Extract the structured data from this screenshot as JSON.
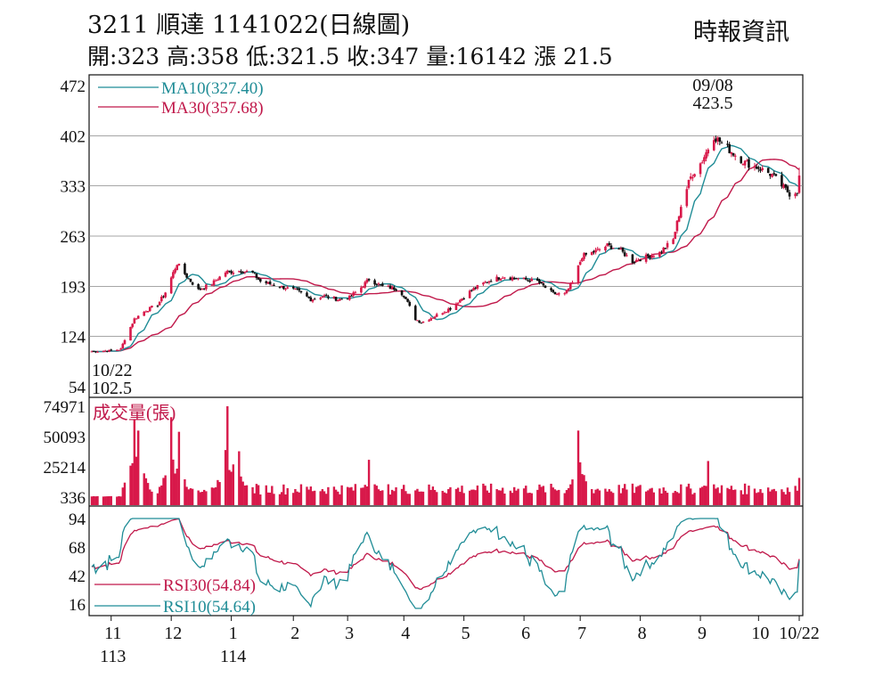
{
  "header": {
    "title": "3211  順達 1141022(日線圖)",
    "ohlc_line": "開:323 高:358 低:321.5 收:347 量:16142 漲 21.5",
    "source": "時報資訊"
  },
  "colors": {
    "up": "#d8194a",
    "down": "#111111",
    "ma10": "#1f8c96",
    "ma30": "#c0184a",
    "volume": "#d8194a",
    "rsi30": "#c0184a",
    "rsi10": "#1f8c96",
    "grid": "#888888"
  },
  "chart_data": [
    {
      "type": "candlestick",
      "panel": "price",
      "y_ticks": [
        "472",
        "402",
        "333",
        "263",
        "193",
        "124",
        "54"
      ],
      "ylim": [
        54,
        472
      ],
      "legend": [
        {
          "key": "ma10",
          "label": "MA10(327.40)"
        },
        {
          "key": "ma30",
          "label": "MA30(357.68)"
        }
      ],
      "annotations": {
        "high": {
          "date": "09/08",
          "value": "423.5"
        },
        "low": {
          "date": "10/22",
          "value": "102.5"
        }
      },
      "ma10_last": 327.4,
      "ma30_last": 357.68,
      "last_bar": {
        "open": 323,
        "high": 358,
        "low": 321.5,
        "close": 347,
        "volume": 16142,
        "change": 21.5
      },
      "close_anchors": [
        [
          "2024-10-22",
          103
        ],
        [
          "2024-11-01",
          104
        ],
        [
          "2024-11-06",
          106
        ],
        [
          "2024-11-08",
          120
        ],
        [
          "2024-11-13",
          148
        ],
        [
          "2024-11-19",
          160
        ],
        [
          "2024-11-25",
          168
        ],
        [
          "2024-11-29",
          185
        ],
        [
          "2024-12-03",
          212
        ],
        [
          "2024-12-05",
          225
        ],
        [
          "2024-12-10",
          207
        ],
        [
          "2024-12-16",
          188
        ],
        [
          "2024-12-23",
          197
        ],
        [
          "2024-12-30",
          213
        ],
        [
          "2025-01-07",
          215
        ],
        [
          "2025-01-13",
          212
        ],
        [
          "2025-01-17",
          200
        ],
        [
          "2025-02-05",
          187
        ],
        [
          "2025-02-12",
          175
        ],
        [
          "2025-02-19",
          180
        ],
        [
          "2025-02-26",
          175
        ],
        [
          "2025-03-04",
          178
        ],
        [
          "2025-03-10",
          192
        ],
        [
          "2025-03-14",
          203
        ],
        [
          "2025-03-21",
          193
        ],
        [
          "2025-03-28",
          190
        ],
        [
          "2025-04-01",
          181
        ],
        [
          "2025-04-07",
          148
        ],
        [
          "2025-04-10",
          143
        ],
        [
          "2025-04-17",
          152
        ],
        [
          "2025-04-25",
          163
        ],
        [
          "2025-05-06",
          188
        ],
        [
          "2025-05-14",
          200
        ],
        [
          "2025-05-22",
          207
        ],
        [
          "2025-06-02",
          203
        ],
        [
          "2025-06-09",
          200
        ],
        [
          "2025-06-17",
          183
        ],
        [
          "2025-06-23",
          182
        ],
        [
          "2025-06-27",
          198
        ],
        [
          "2025-07-02",
          235
        ],
        [
          "2025-07-09",
          242
        ],
        [
          "2025-07-15",
          250
        ],
        [
          "2025-07-21",
          245
        ],
        [
          "2025-07-28",
          228
        ],
        [
          "2025-08-05",
          235
        ],
        [
          "2025-08-11",
          240
        ],
        [
          "2025-08-18",
          258
        ],
        [
          "2025-08-22",
          305
        ],
        [
          "2025-08-27",
          345
        ],
        [
          "2025-09-02",
          368
        ],
        [
          "2025-09-08",
          402
        ],
        [
          "2025-09-12",
          392
        ],
        [
          "2025-09-18",
          378
        ],
        [
          "2025-09-24",
          365
        ],
        [
          "2025-10-01",
          358
        ],
        [
          "2025-10-08",
          348
        ],
        [
          "2025-10-14",
          330
        ],
        [
          "2025-10-17",
          322
        ],
        [
          "2025-10-21",
          325.5
        ],
        [
          "2025-10-22",
          347
        ]
      ],
      "x_month_labels": [
        {
          "label": "11",
          "date": "2024-11-01"
        },
        {
          "label": "12",
          "date": "2024-12-02"
        },
        {
          "label": "1",
          "date": "2025-01-02"
        },
        {
          "label": "2",
          "date": "2025-02-03"
        },
        {
          "label": "3",
          "date": "2025-03-03"
        },
        {
          "label": "4",
          "date": "2025-04-01"
        },
        {
          "label": "5",
          "date": "2025-05-02"
        },
        {
          "label": "6",
          "date": "2025-06-02"
        },
        {
          "label": "7",
          "date": "2025-07-01"
        },
        {
          "label": "8",
          "date": "2025-08-01"
        },
        {
          "label": "9",
          "date": "2025-09-01"
        },
        {
          "label": "10",
          "date": "2025-10-01"
        },
        {
          "label": "10/22",
          "date": "2025-10-22"
        }
      ],
      "x_year_labels": [
        {
          "label": "113",
          "date": "2024-11-01"
        },
        {
          "label": "114",
          "date": "2025-01-02"
        }
      ]
    },
    {
      "type": "bar",
      "panel": "volume",
      "label": "成交量(張)",
      "y_ticks": [
        "74971",
        "50093",
        "25214",
        "336"
      ],
      "ylim": [
        336,
        74971
      ],
      "spikes": [
        [
          "2024-11-13",
          64000
        ],
        [
          "2024-11-15",
          55000
        ],
        [
          "2024-12-02",
          66000
        ],
        [
          "2024-12-06",
          54000
        ],
        [
          "2024-12-31",
          74971
        ],
        [
          "2025-01-06",
          38000
        ],
        [
          "2025-03-14",
          31000
        ],
        [
          "2025-06-30",
          55000
        ],
        [
          "2025-09-05",
          30000
        ]
      ]
    },
    {
      "type": "line",
      "panel": "rsi",
      "y_ticks": [
        "94",
        "68",
        "42",
        "16"
      ],
      "ylim": [
        16,
        94
      ],
      "series": [
        {
          "key": "rsi30",
          "label": "RSI30(54.84)",
          "last": 54.84
        },
        {
          "key": "rsi10",
          "label": "RSI10(54.64)",
          "last": 54.64
        }
      ]
    }
  ]
}
